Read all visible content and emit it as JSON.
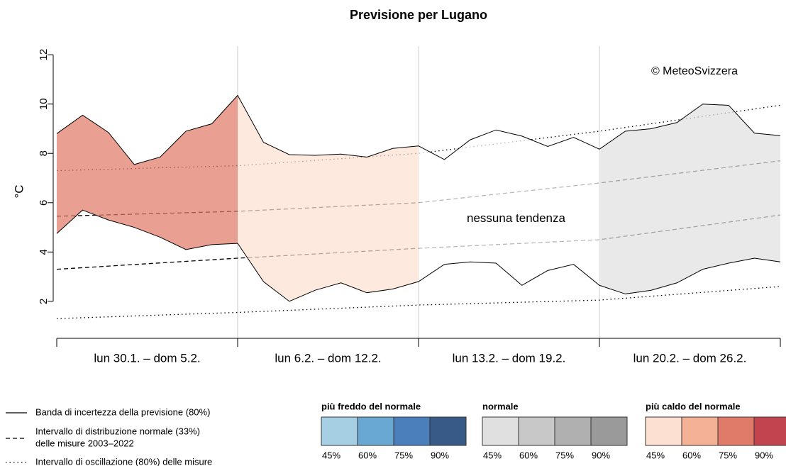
{
  "chart_data": {
    "type": "band",
    "title": "Previsione per Lugano",
    "ylabel": "°C",
    "annotation": "© MeteoSvizzera",
    "xlim": [
      0,
      28
    ],
    "xticks": [
      0,
      7,
      14,
      21,
      28
    ],
    "ylim": [
      0.5,
      12.35
    ],
    "yticks": [
      2,
      4,
      6,
      8,
      10,
      12
    ],
    "weeks": [
      {
        "label": "lun 30.1. – dom 5.2.",
        "color": "#e07b6a"
      },
      {
        "label": "lun 6.2. – dom 12.2.",
        "color": "#fce0d1"
      },
      {
        "label": "lun 13.2. – dom 19.2.",
        "color": "#ffffff",
        "tendency": "nessuna tendenza"
      },
      {
        "label": "lun 20.2. – dom 26.2.",
        "color": "#e0e0e0"
      }
    ],
    "x": [
      0,
      1,
      2,
      3,
      4,
      5,
      6,
      7,
      8,
      9,
      10,
      11,
      12,
      13,
      14,
      15,
      16,
      17,
      18,
      19,
      20,
      21,
      22,
      23,
      24,
      25,
      26,
      27,
      28
    ],
    "forecast_upper": [
      8.8,
      9.55,
      8.85,
      7.55,
      7.85,
      8.9,
      9.2,
      10.35,
      8.45,
      7.95,
      7.92,
      7.97,
      7.85,
      8.2,
      8.3,
      7.75,
      8.55,
      8.95,
      8.7,
      8.28,
      8.65,
      8.17,
      8.9,
      9.0,
      9.25,
      10.0,
      9.95,
      8.82,
      8.72
    ],
    "forecast_lower": [
      4.75,
      5.7,
      5.3,
      5.0,
      4.6,
      4.1,
      4.3,
      4.35,
      2.8,
      2.0,
      2.45,
      2.75,
      2.35,
      2.5,
      2.8,
      3.5,
      3.6,
      3.55,
      2.65,
      3.25,
      3.5,
      2.65,
      2.3,
      2.45,
      2.75,
      3.3,
      3.55,
      3.75,
      3.6
    ],
    "x_norm": [
      0,
      7,
      14,
      21,
      28
    ],
    "normal_upper": [
      5.45,
      5.65,
      6.0,
      6.8,
      7.7
    ],
    "normal_lower": [
      3.3,
      3.75,
      4.15,
      4.5,
      5.5
    ],
    "range_upper": [
      7.3,
      7.5,
      8.0,
      8.9,
      9.95
    ],
    "range_lower": [
      1.3,
      1.55,
      1.85,
      2.05,
      2.6
    ],
    "legend_lines": [
      {
        "style": "solid",
        "label": [
          "Banda di incertezza della previsione (80%)"
        ]
      },
      {
        "style": "dashed",
        "label": [
          "Intervallo di distribuzione normale (33%)",
          "delle misure 2003–2022"
        ]
      },
      {
        "style": "dotted",
        "label": [
          "Intervallo di oscillazione (80%) delle misure"
        ]
      }
    ],
    "scales": [
      {
        "title": "più freddo del normale",
        "colors": [
          "#a7cfe4",
          "#68a8d2",
          "#4a7fbc",
          "#375b86"
        ]
      },
      {
        "title": "normale",
        "colors": [
          "#e0e0e0",
          "#c8c8c8",
          "#b0b0b0",
          "#9a9a9a"
        ]
      },
      {
        "title": "più caldo del normale",
        "colors": [
          "#fce0d1",
          "#f5b195",
          "#e07b6a",
          "#c1444f"
        ]
      }
    ],
    "scale_labels": [
      "45%",
      "60%",
      "75%",
      "90%"
    ]
  }
}
